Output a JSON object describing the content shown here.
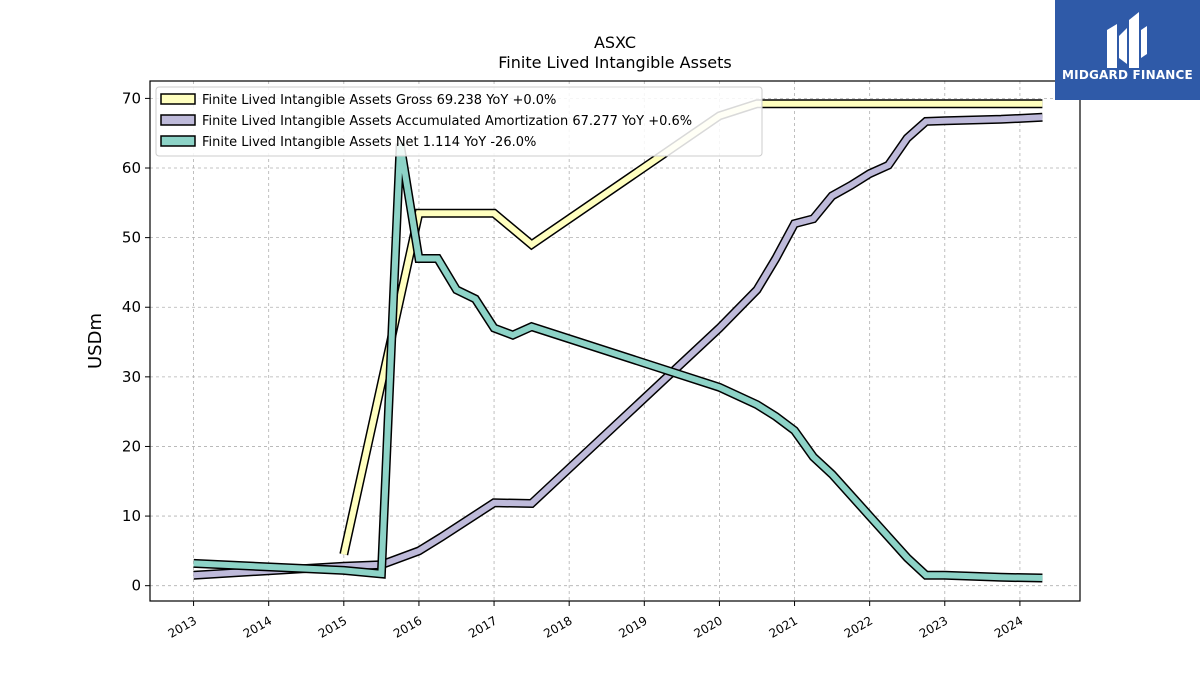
{
  "header": {
    "ticker": "ASXC",
    "subtitle": "Finite Lived Intangible Assets"
  },
  "logo": {
    "text": "MIDGARD FINANCE",
    "color": "#2f5aa8"
  },
  "chart_data": {
    "type": "line",
    "title": "ASXC",
    "subtitle": "Finite Lived Intangible Assets",
    "ylabel": "USDm",
    "xlabel": "",
    "ylim": [
      -2.2,
      72.5
    ],
    "xlim": [
      2012.42,
      2024.8
    ],
    "yticks": [
      0,
      10,
      20,
      30,
      40,
      50,
      60,
      70
    ],
    "xticks": [
      "2013",
      "2014",
      "2015",
      "2016",
      "2017",
      "2018",
      "2019",
      "2020",
      "2021",
      "2022",
      "2023",
      "2024"
    ],
    "grid": true,
    "legend_position": "top-left",
    "series": [
      {
        "name": "Finite Lived Intangible Assets Gross",
        "legend": "Finite Lived Intangible Assets Gross  69.238 YoY +0.0%",
        "color": "#ffffbf",
        "points": [
          [
            2015.0,
            4.5
          ],
          [
            2016.0,
            53.5
          ],
          [
            2017.0,
            53.5
          ],
          [
            2017.5,
            49.0
          ],
          [
            2020.0,
            67.5
          ],
          [
            2020.5,
            69.24
          ],
          [
            2024.3,
            69.24
          ]
        ]
      },
      {
        "name": "Finite Lived Intangible Assets Accumulated Amortization",
        "legend": "Finite Lived Intangible Assets Accumulated Amortization  67.277 YoY +0.6%",
        "color": "#bebada",
        "points": [
          [
            2013.0,
            1.5
          ],
          [
            2015.0,
            2.8
          ],
          [
            2015.5,
            3.0
          ],
          [
            2016.0,
            5.0
          ],
          [
            2016.3,
            7.0
          ],
          [
            2017.0,
            11.9
          ],
          [
            2017.5,
            11.8
          ],
          [
            2020.0,
            37.0
          ],
          [
            2020.5,
            42.5
          ],
          [
            2020.75,
            47.0
          ],
          [
            2021.0,
            52.0
          ],
          [
            2021.25,
            52.7
          ],
          [
            2021.5,
            56.0
          ],
          [
            2021.75,
            57.5
          ],
          [
            2022.0,
            59.2
          ],
          [
            2022.25,
            60.4
          ],
          [
            2022.5,
            64.3
          ],
          [
            2022.75,
            66.7
          ],
          [
            2023.0,
            66.8
          ],
          [
            2023.75,
            67.0
          ],
          [
            2024.3,
            67.28
          ]
        ]
      },
      {
        "name": "Finite Lived Intangible Assets Net",
        "legend": "Finite Lived Intangible Assets Net  1.114 YoY -26.0%",
        "color": "#8dd3c7",
        "points": [
          [
            2013.0,
            3.2
          ],
          [
            2015.0,
            2.2
          ],
          [
            2015.5,
            1.7
          ],
          [
            2015.75,
            63.5
          ],
          [
            2016.0,
            47.0
          ],
          [
            2016.25,
            47.0
          ],
          [
            2016.5,
            42.5
          ],
          [
            2016.75,
            41.2
          ],
          [
            2017.0,
            37.0
          ],
          [
            2017.25,
            36.0
          ],
          [
            2017.5,
            37.2
          ],
          [
            2020.0,
            28.5
          ],
          [
            2020.5,
            26.0
          ],
          [
            2020.75,
            24.3
          ],
          [
            2021.0,
            22.3
          ],
          [
            2021.25,
            18.5
          ],
          [
            2021.5,
            16.0
          ],
          [
            2022.0,
            10.0
          ],
          [
            2022.5,
            4.0
          ],
          [
            2022.75,
            1.5
          ],
          [
            2023.0,
            1.5
          ],
          [
            2023.75,
            1.2
          ],
          [
            2024.3,
            1.11
          ]
        ]
      }
    ]
  }
}
